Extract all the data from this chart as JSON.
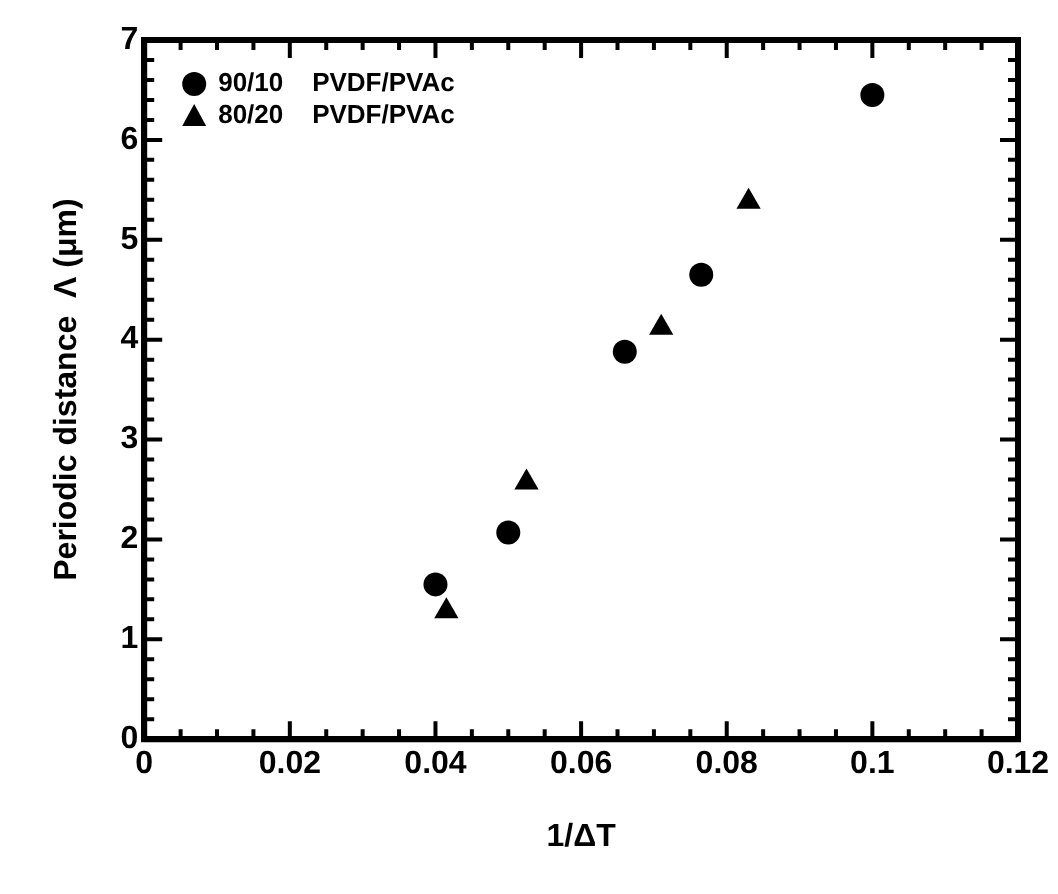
{
  "chart_data": {
    "type": "scatter",
    "xlabel": "1/ΔT",
    "ylabel": "Periodic distance  Λ (μm)",
    "xlim": [
      0,
      0.12
    ],
    "xticks": [
      0,
      0.02,
      0.04,
      0.06,
      0.08,
      0.1,
      0.12
    ],
    "ylim": [
      0,
      7
    ],
    "yticks": [
      0,
      1,
      2,
      3,
      4,
      5,
      6,
      7
    ],
    "grid": false,
    "legend": "top left",
    "series": [
      {
        "name": "90/10    PVDF/PVAc",
        "color": "#000000",
        "marker": "circle",
        "x": [
          0.04,
          0.05,
          0.066,
          0.0765,
          0.1
        ],
        "values": [
          1.55,
          2.07,
          3.88,
          4.65,
          6.45
        ]
      },
      {
        "name": "80/20    PVDF/PVAc",
        "color": "#000000",
        "marker": "triangle",
        "x": [
          0.0415,
          0.0525,
          0.071,
          0.083
        ],
        "values": [
          1.28,
          2.57,
          4.12,
          5.38
        ]
      }
    ]
  }
}
